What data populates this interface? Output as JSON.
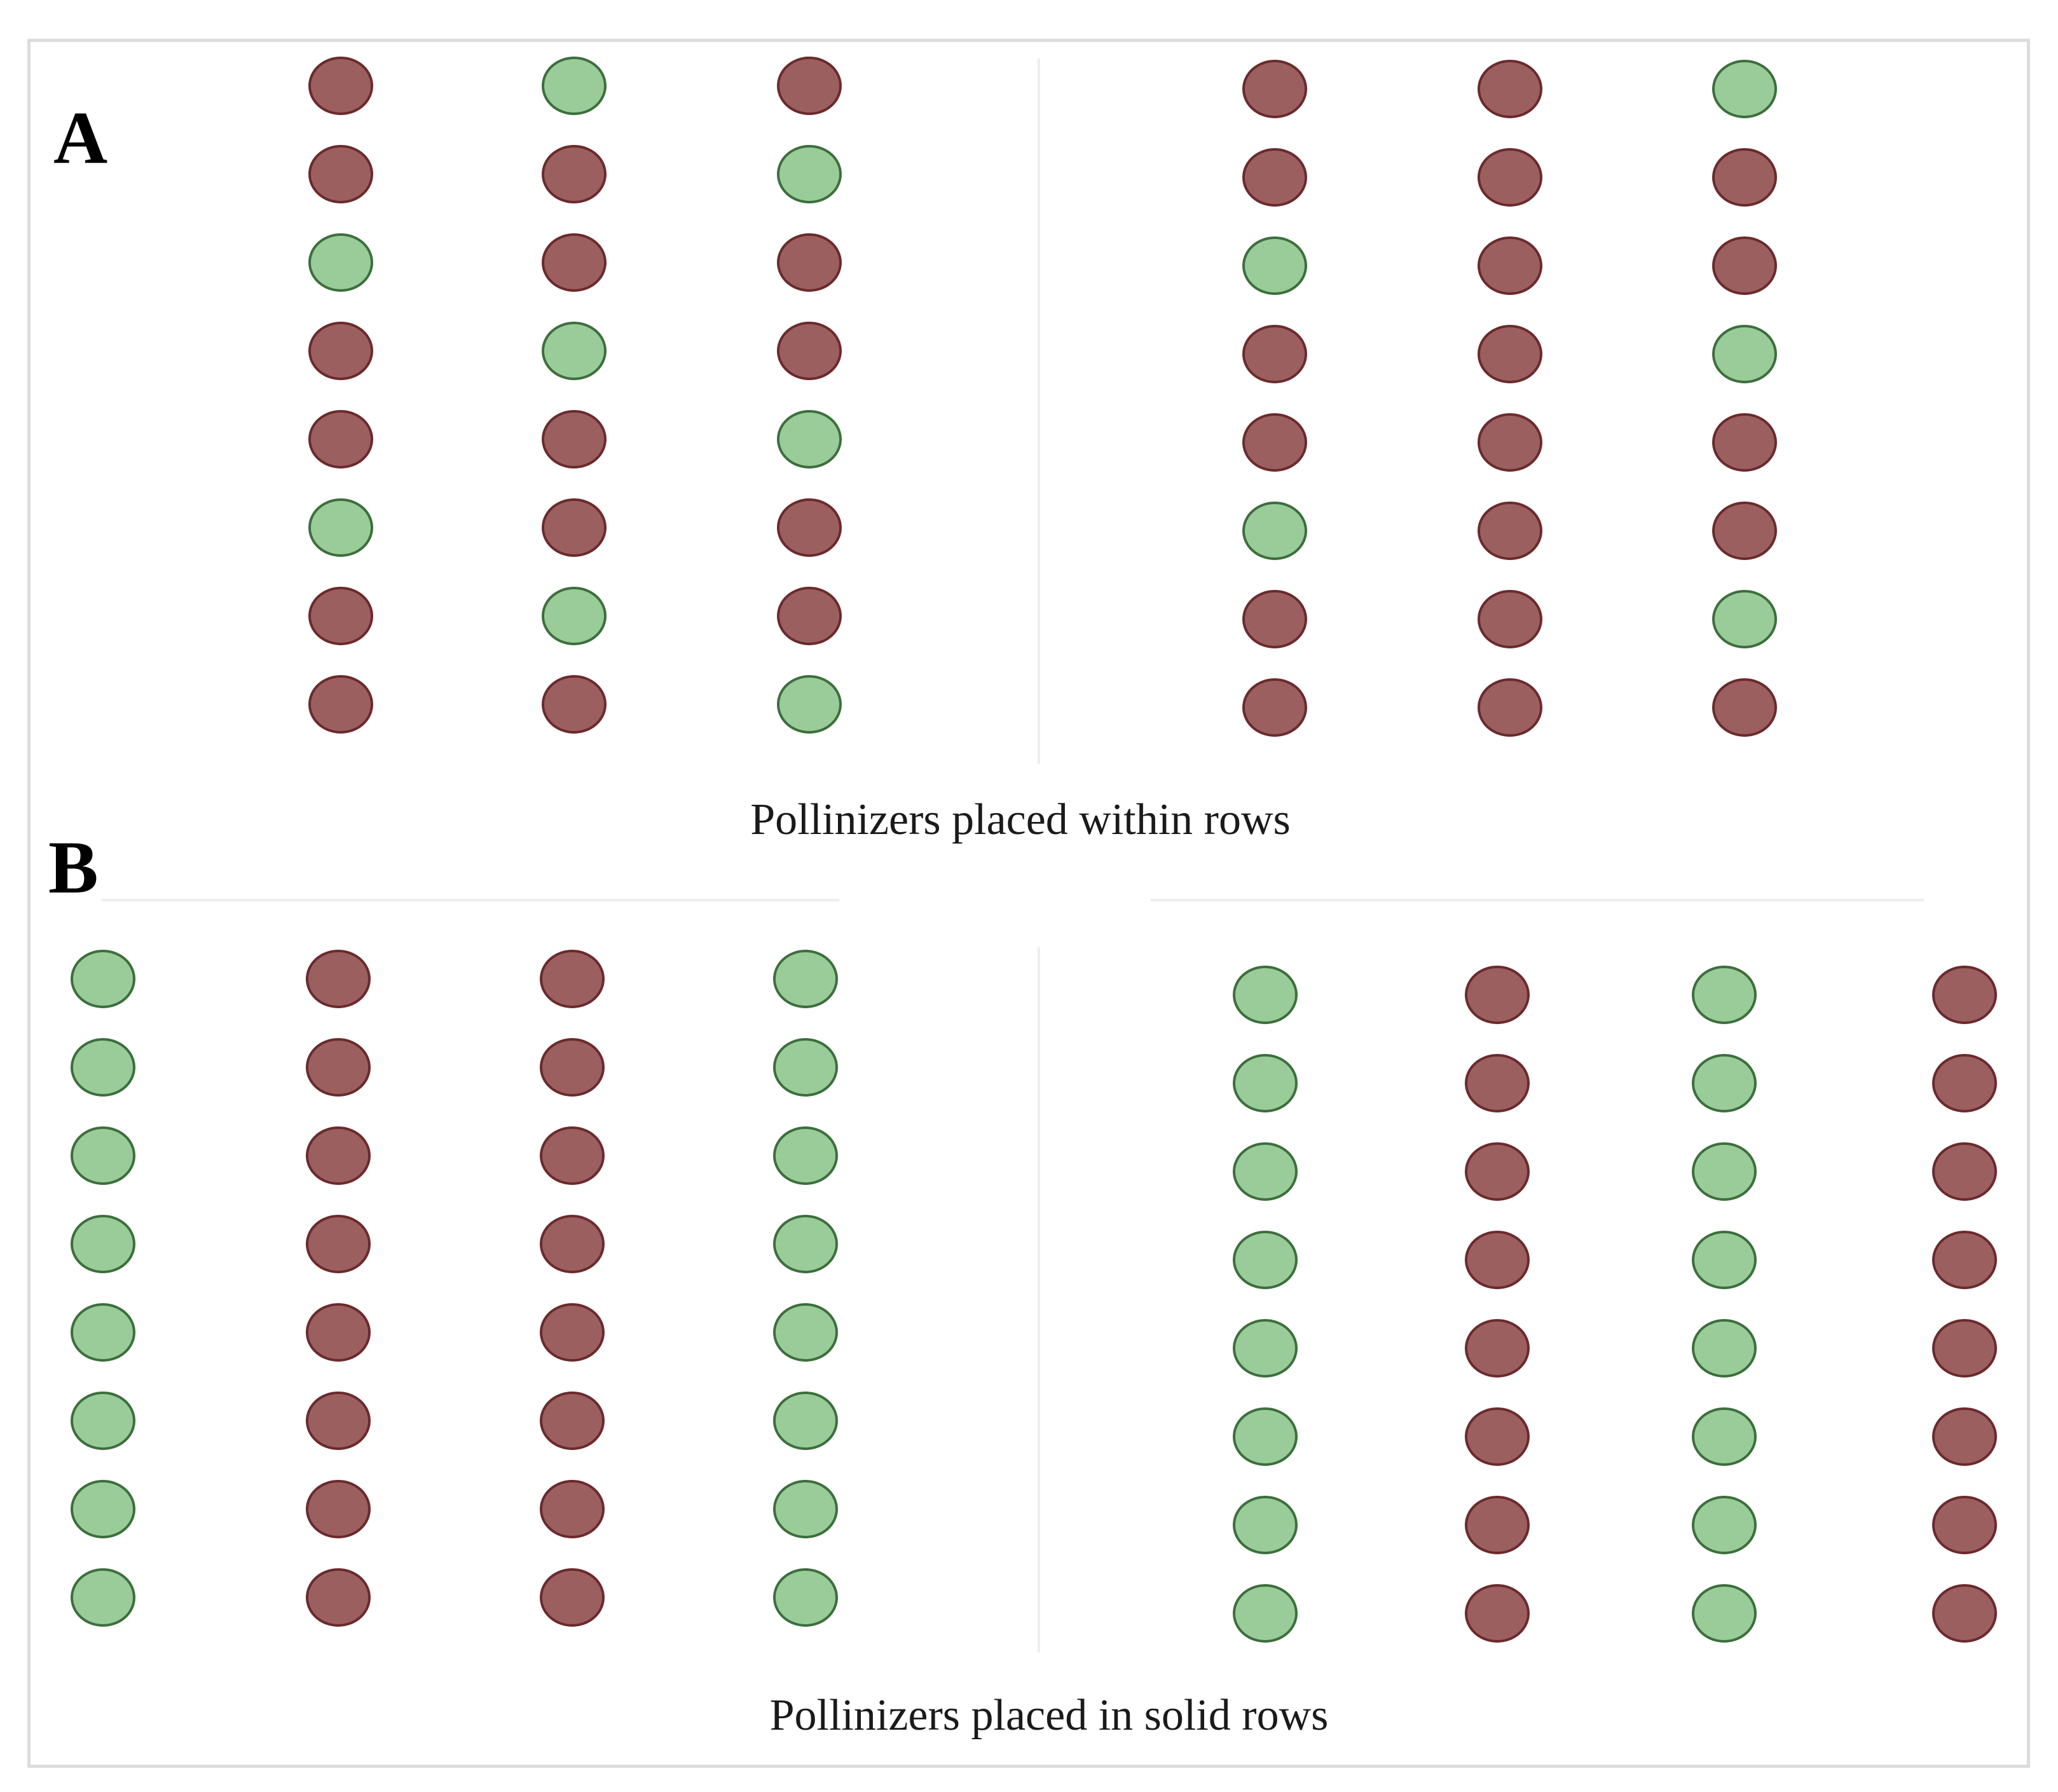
{
  "colors": {
    "pollinizer_fill": "#99cc99",
    "pollinizer_stroke": "#3d6e3d",
    "main_cultivar_fill": "#9c5f60",
    "main_cultivar_stroke": "#6b2a2c"
  },
  "panels": [
    {
      "id": "A",
      "label": "A",
      "caption": "Pollinizers placed within rows",
      "blocks": [
        {
          "columns": [
            [
              "main",
              "main",
              "pollinizer",
              "main",
              "main",
              "pollinizer",
              "main",
              "main"
            ],
            [
              "pollinizer",
              "main",
              "main",
              "pollinizer",
              "main",
              "main",
              "pollinizer",
              "main"
            ],
            [
              "main",
              "pollinizer",
              "main",
              "main",
              "pollinizer",
              "main",
              "main",
              "pollinizer"
            ]
          ]
        },
        {
          "columns": [
            [
              "main",
              "main",
              "pollinizer",
              "main",
              "main",
              "pollinizer",
              "main",
              "main"
            ],
            [
              "main",
              "main",
              "main",
              "main",
              "main",
              "main",
              "main",
              "main"
            ],
            [
              "pollinizer",
              "main",
              "main",
              "pollinizer",
              "main",
              "main",
              "pollinizer",
              "main"
            ]
          ]
        }
      ]
    },
    {
      "id": "B",
      "label": "B",
      "caption": "Pollinizers placed in solid rows",
      "blocks": [
        {
          "columns": [
            [
              "pollinizer",
              "pollinizer",
              "pollinizer",
              "pollinizer",
              "pollinizer",
              "pollinizer",
              "pollinizer",
              "pollinizer"
            ],
            [
              "main",
              "main",
              "main",
              "main",
              "main",
              "main",
              "main",
              "main"
            ],
            [
              "main",
              "main",
              "main",
              "main",
              "main",
              "main",
              "main",
              "main"
            ],
            [
              "pollinizer",
              "pollinizer",
              "pollinizer",
              "pollinizer",
              "pollinizer",
              "pollinizer",
              "pollinizer",
              "pollinizer"
            ]
          ]
        },
        {
          "columns": [
            [
              "pollinizer",
              "pollinizer",
              "pollinizer",
              "pollinizer",
              "pollinizer",
              "pollinizer",
              "pollinizer",
              "pollinizer"
            ],
            [
              "main",
              "main",
              "main",
              "main",
              "main",
              "main",
              "main",
              "main"
            ],
            [
              "pollinizer",
              "pollinizer",
              "pollinizer",
              "pollinizer",
              "pollinizer",
              "pollinizer",
              "pollinizer",
              "pollinizer"
            ],
            [
              "main",
              "main",
              "main",
              "main",
              "main",
              "main",
              "main",
              "main"
            ]
          ]
        }
      ]
    }
  ]
}
